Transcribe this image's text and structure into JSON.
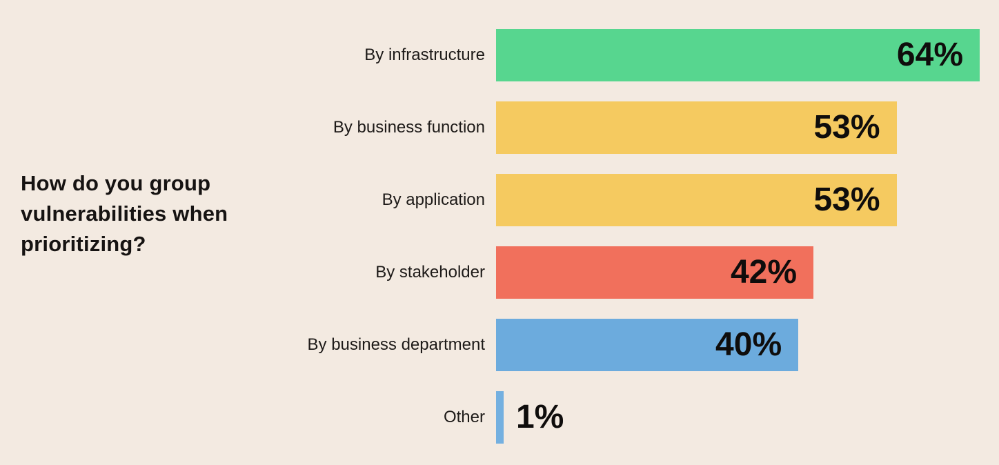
{
  "page": {
    "background_color": "#f3eae1",
    "text_color": "#151210"
  },
  "title": {
    "lines": [
      "How do you group",
      "vulnerabilities when",
      "prioritizing?"
    ]
  },
  "chart_data": {
    "type": "bar",
    "orientation": "horizontal",
    "title": "How do you group vulnerabilities when prioritizing?",
    "categories": [
      "By infrastructure",
      "By business function",
      "By application",
      "By stakeholder",
      "By business department",
      "Other"
    ],
    "values": [
      64,
      53,
      53,
      42,
      40,
      1
    ],
    "value_labels": [
      "64%",
      "53%",
      "53%",
      "42%",
      "40%",
      "1%"
    ],
    "bar_colors": [
      "#57d68f",
      "#f5ca60",
      "#f5ca60",
      "#f1705c",
      "#6cabdd",
      "#74b0e0"
    ],
    "xlim": [
      0,
      64
    ],
    "grid": false,
    "legend": false,
    "axis_ticks": false,
    "value_label_style": "bold, inside bar right-aligned; outside right when bar too narrow",
    "value_label_color": "#0f0d0c"
  }
}
